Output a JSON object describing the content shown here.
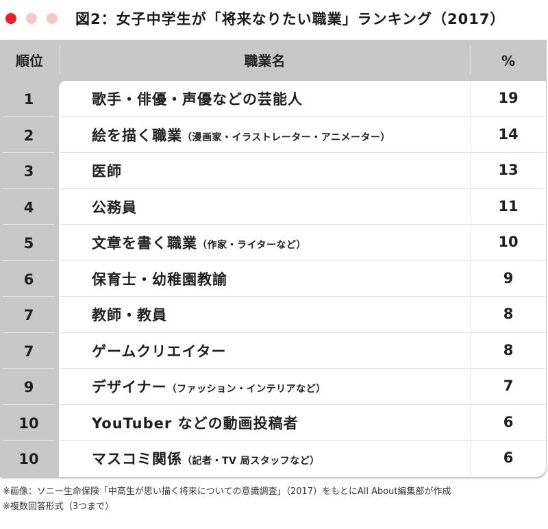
{
  "window": {
    "controls": [
      {
        "name": "close",
        "color": "#e8202a"
      },
      {
        "name": "minimize",
        "color": "#f6c8cb"
      },
      {
        "name": "maximize",
        "color": "#f6c8cb"
      }
    ]
  },
  "title": "図2：女子中学生が「将来なりたい職業」ランキング（2017）",
  "table": {
    "headers": {
      "rank": "順位",
      "name": "職業名",
      "percent": "%"
    },
    "rows": [
      {
        "rank": "1",
        "name": "歌手・俳優・声優などの芸能人",
        "note": "",
        "percent": "19"
      },
      {
        "rank": "2",
        "name": "絵を描く職業",
        "note": "（漫画家・イラストレーター・アニメーター）",
        "percent": "14"
      },
      {
        "rank": "3",
        "name": "医師",
        "note": "",
        "percent": "13"
      },
      {
        "rank": "4",
        "name": "公務員",
        "note": "",
        "percent": "11"
      },
      {
        "rank": "5",
        "name": "文章を書く職業",
        "note": "（作家・ライターなど）",
        "percent": "10"
      },
      {
        "rank": "6",
        "name": "保育士・幼稚園教諭",
        "note": "",
        "percent": "9"
      },
      {
        "rank": "7",
        "name": "教師・教員",
        "note": "",
        "percent": "8"
      },
      {
        "rank": "7",
        "name": "ゲームクリエイター",
        "note": "",
        "percent": "8"
      },
      {
        "rank": "9",
        "name": "デザイナー",
        "note": "（ファッション・インテリアなど）",
        "percent": "7"
      },
      {
        "rank": "10",
        "name": "YouTuber などの動画投稿者",
        "note": "",
        "percent": "6"
      },
      {
        "rank": "10",
        "name": "マスコミ関係",
        "note": "（記者・TV 局スタッフなど）",
        "percent": "6"
      }
    ]
  },
  "notes": [
    "※画像：ソニー生命保険「中高生が思い描く将来についての意識調査」（2017）をもとにAll About編集部が作成",
    "※複数回答形式（3つまで）"
  ],
  "colors": {
    "header_bg": "#c9c8c9",
    "body_bg": "#ffffff",
    "text": "#1f1f1f",
    "accent_red": "#e8202a"
  }
}
